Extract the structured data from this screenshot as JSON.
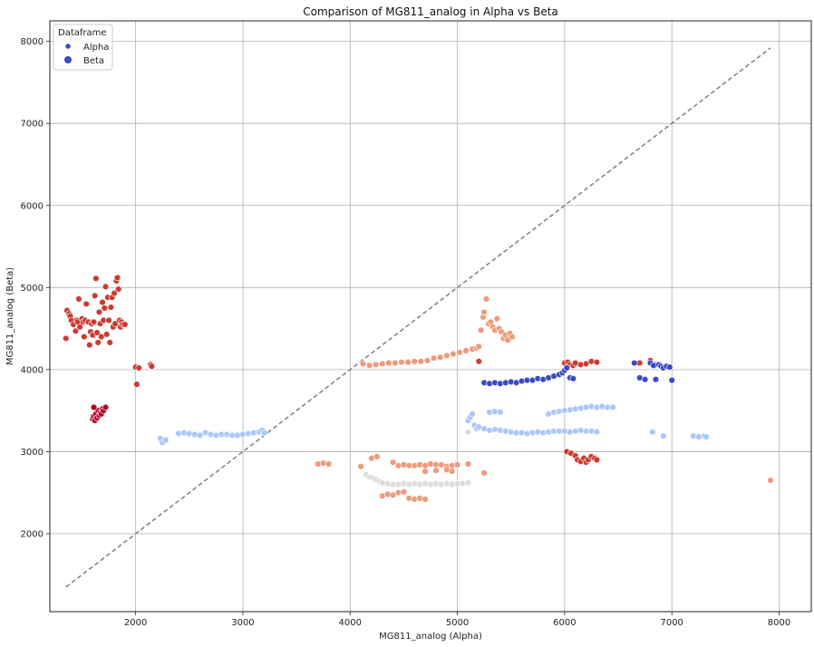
{
  "chart_data": {
    "type": "scatter",
    "title": "Comparison of MG811_analog in Alpha vs Beta",
    "xlabel": "MG811_analog (Alpha)",
    "ylabel": "MG811_analog (Beta)",
    "xlim": [
      1200,
      8300
    ],
    "ylim": [
      1050,
      8250
    ],
    "xticks": [
      2000,
      3000,
      4000,
      5000,
      6000,
      7000,
      8000
    ],
    "yticks": [
      2000,
      3000,
      4000,
      5000,
      6000,
      7000,
      8000
    ],
    "grid": true,
    "legend": {
      "title": "Dataframe",
      "placement": "top-left",
      "entries": [
        {
          "label": "Alpha",
          "color": "#3b4cc0"
        },
        {
          "label": "Beta",
          "color": "#3b4cc0"
        }
      ]
    },
    "reference_line": {
      "style": "dashed",
      "color": "#808080",
      "from": [
        1350,
        1350
      ],
      "to": [
        7920,
        7920
      ]
    },
    "series": [
      {
        "color": "#cc3b33",
        "points": [
          [
            1350,
            4380
          ],
          [
            1360,
            4720
          ],
          [
            1380,
            4680
          ],
          [
            1390,
            4650
          ],
          [
            1400,
            4600
          ],
          [
            1420,
            4550
          ],
          [
            1440,
            4470
          ],
          [
            1450,
            4600
          ],
          [
            1460,
            4580
          ],
          [
            1470,
            4860
          ],
          [
            1480,
            4520
          ],
          [
            1500,
            4620
          ],
          [
            1510,
            4580
          ],
          [
            1520,
            4400
          ],
          [
            1530,
            4600
          ],
          [
            1540,
            4800
          ],
          [
            1560,
            4580
          ],
          [
            1570,
            4300
          ],
          [
            1580,
            4460
          ],
          [
            1590,
            4560
          ],
          [
            1600,
            4420
          ],
          [
            1610,
            4580
          ],
          [
            1620,
            4900
          ],
          [
            1630,
            5110
          ],
          [
            1640,
            4450
          ],
          [
            1650,
            4330
          ],
          [
            1660,
            4700
          ],
          [
            1670,
            4560
          ],
          [
            1680,
            4400
          ],
          [
            1690,
            4820
          ],
          [
            1700,
            4600
          ],
          [
            1710,
            4750
          ],
          [
            1720,
            5010
          ],
          [
            1730,
            4430
          ],
          [
            1740,
            4880
          ],
          [
            1750,
            4600
          ],
          [
            1760,
            4330
          ],
          [
            1770,
            4760
          ],
          [
            1780,
            4880
          ],
          [
            1790,
            4520
          ],
          [
            1800,
            4930
          ],
          [
            1810,
            4560
          ],
          [
            1820,
            5080
          ],
          [
            1830,
            5120
          ],
          [
            1840,
            4980
          ],
          [
            1850,
            4600
          ],
          [
            1860,
            4520
          ],
          [
            1870,
            4580
          ],
          [
            1880,
            4550
          ],
          [
            1900,
            4550
          ],
          [
            2000,
            4030
          ],
          [
            2010,
            3820
          ],
          [
            2030,
            4020
          ],
          [
            2140,
            4060
          ],
          [
            2150,
            4040
          ],
          [
            6000,
            4080
          ],
          [
            6030,
            4090
          ],
          [
            6050,
            4060
          ],
          [
            6080,
            4050
          ],
          [
            6100,
            4080
          ],
          [
            6150,
            4060
          ],
          [
            6200,
            4070
          ],
          [
            6250,
            4100
          ],
          [
            6300,
            4090
          ],
          [
            6700,
            4080
          ],
          [
            6800,
            4110
          ],
          [
            6850,
            4060
          ],
          [
            5200,
            4100
          ],
          [
            6020,
            3000
          ],
          [
            6060,
            2980
          ],
          [
            6100,
            2950
          ],
          [
            6120,
            2900
          ],
          [
            6150,
            2880
          ],
          [
            6180,
            2920
          ],
          [
            6200,
            2870
          ],
          [
            6220,
            2900
          ],
          [
            6250,
            2940
          ],
          [
            6280,
            2920
          ],
          [
            6300,
            2900
          ]
        ]
      },
      {
        "color": "#b40426",
        "points": [
          [
            1600,
            3400
          ],
          [
            1610,
            3430
          ],
          [
            1620,
            3380
          ],
          [
            1630,
            3460
          ],
          [
            1640,
            3410
          ],
          [
            1650,
            3500
          ],
          [
            1660,
            3440
          ],
          [
            1670,
            3480
          ],
          [
            1680,
            3460
          ],
          [
            1690,
            3520
          ],
          [
            1700,
            3500
          ],
          [
            1720,
            3540
          ],
          [
            1610,
            3540
          ]
        ]
      },
      {
        "color": "#f0997b",
        "points": [
          [
            4120,
            4070
          ],
          [
            4180,
            4050
          ],
          [
            4240,
            4060
          ],
          [
            4300,
            4070
          ],
          [
            4360,
            4080
          ],
          [
            4420,
            4080
          ],
          [
            4480,
            4090
          ],
          [
            4540,
            4090
          ],
          [
            4600,
            4100
          ],
          [
            4660,
            4100
          ],
          [
            4720,
            4110
          ],
          [
            4780,
            4140
          ],
          [
            4840,
            4150
          ],
          [
            4900,
            4170
          ],
          [
            4960,
            4190
          ],
          [
            5020,
            4210
          ],
          [
            5080,
            4230
          ],
          [
            5140,
            4250
          ],
          [
            5180,
            4260
          ],
          [
            5200,
            4280
          ],
          [
            5220,
            4480
          ],
          [
            5240,
            4640
          ],
          [
            5250,
            4700
          ],
          [
            5270,
            4860
          ],
          [
            5290,
            4560
          ],
          [
            5310,
            4580
          ],
          [
            5330,
            4520
          ],
          [
            5350,
            4480
          ],
          [
            5370,
            4620
          ],
          [
            5390,
            4500
          ],
          [
            5410,
            4460
          ],
          [
            5430,
            4380
          ],
          [
            5450,
            4420
          ],
          [
            5470,
            4360
          ],
          [
            5490,
            4440
          ],
          [
            5510,
            4400
          ],
          [
            3700,
            2850
          ],
          [
            3750,
            2860
          ],
          [
            3800,
            2850
          ],
          [
            4100,
            2820
          ],
          [
            4200,
            2920
          ],
          [
            4250,
            2940
          ],
          [
            4400,
            2870
          ],
          [
            4450,
            2830
          ],
          [
            4500,
            2840
          ],
          [
            4550,
            2830
          ],
          [
            4600,
            2830
          ],
          [
            4650,
            2840
          ],
          [
            4700,
            2830
          ],
          [
            4750,
            2850
          ],
          [
            4800,
            2840
          ],
          [
            4850,
            2840
          ],
          [
            4900,
            2820
          ],
          [
            4950,
            2830
          ],
          [
            5000,
            2840
          ],
          [
            5100,
            2850
          ],
          [
            5250,
            2740
          ],
          [
            4700,
            2760
          ],
          [
            4800,
            2770
          ],
          [
            4900,
            2780
          ],
          [
            4950,
            2760
          ],
          [
            4300,
            2460
          ],
          [
            4350,
            2480
          ],
          [
            4400,
            2470
          ],
          [
            4450,
            2500
          ],
          [
            4500,
            2510
          ],
          [
            4550,
            2430
          ],
          [
            4600,
            2420
          ],
          [
            4650,
            2430
          ],
          [
            4700,
            2420
          ],
          [
            7920,
            2650
          ]
        ]
      },
      {
        "color": "#dddcdc",
        "points": [
          [
            4150,
            2720
          ],
          [
            4180,
            2690
          ],
          [
            4210,
            2680
          ],
          [
            4240,
            2660
          ],
          [
            4270,
            2640
          ],
          [
            4300,
            2620
          ],
          [
            4350,
            2610
          ],
          [
            4400,
            2600
          ],
          [
            4450,
            2600
          ],
          [
            4500,
            2610
          ],
          [
            4550,
            2600
          ],
          [
            4600,
            2610
          ],
          [
            4650,
            2600
          ],
          [
            4700,
            2610
          ],
          [
            4750,
            2600
          ],
          [
            4800,
            2610
          ],
          [
            4850,
            2600
          ],
          [
            4900,
            2610
          ],
          [
            4950,
            2600
          ],
          [
            5000,
            2610
          ],
          [
            5050,
            2610
          ],
          [
            5100,
            2620
          ],
          [
            5100,
            3240
          ]
        ]
      },
      {
        "color": "#aac7fd",
        "points": [
          [
            2230,
            3160
          ],
          [
            2250,
            3110
          ],
          [
            2280,
            3140
          ],
          [
            2400,
            3220
          ],
          [
            2450,
            3230
          ],
          [
            2500,
            3220
          ],
          [
            2550,
            3210
          ],
          [
            2600,
            3200
          ],
          [
            2650,
            3230
          ],
          [
            2700,
            3210
          ],
          [
            2750,
            3200
          ],
          [
            2800,
            3210
          ],
          [
            2850,
            3210
          ],
          [
            2900,
            3200
          ],
          [
            2950,
            3200
          ],
          [
            3000,
            3210
          ],
          [
            3050,
            3220
          ],
          [
            3100,
            3230
          ],
          [
            3150,
            3240
          ],
          [
            3180,
            3260
          ],
          [
            3200,
            3230
          ],
          [
            5100,
            3380
          ],
          [
            5120,
            3420
          ],
          [
            5140,
            3460
          ],
          [
            5160,
            3320
          ],
          [
            5180,
            3280
          ],
          [
            5200,
            3300
          ],
          [
            5250,
            3280
          ],
          [
            5300,
            3260
          ],
          [
            5350,
            3270
          ],
          [
            5400,
            3260
          ],
          [
            5450,
            3250
          ],
          [
            5500,
            3240
          ],
          [
            5550,
            3230
          ],
          [
            5600,
            3230
          ],
          [
            5650,
            3220
          ],
          [
            5700,
            3230
          ],
          [
            5750,
            3240
          ],
          [
            5800,
            3230
          ],
          [
            5850,
            3240
          ],
          [
            5900,
            3250
          ],
          [
            5950,
            3250
          ],
          [
            6000,
            3250
          ],
          [
            6050,
            3240
          ],
          [
            6100,
            3250
          ],
          [
            6150,
            3260
          ],
          [
            6200,
            3250
          ],
          [
            6250,
            3250
          ],
          [
            6300,
            3240
          ],
          [
            5300,
            3480
          ],
          [
            5350,
            3490
          ],
          [
            5400,
            3480
          ],
          [
            5850,
            3460
          ],
          [
            5900,
            3480
          ],
          [
            5950,
            3490
          ],
          [
            6000,
            3500
          ],
          [
            6050,
            3510
          ],
          [
            6100,
            3520
          ],
          [
            6150,
            3530
          ],
          [
            6200,
            3540
          ],
          [
            6250,
            3550
          ],
          [
            6300,
            3540
          ],
          [
            6350,
            3550
          ],
          [
            6400,
            3540
          ],
          [
            6450,
            3540
          ],
          [
            6820,
            3240
          ],
          [
            6920,
            3190
          ],
          [
            7200,
            3190
          ],
          [
            7250,
            3180
          ],
          [
            7300,
            3190
          ],
          [
            7320,
            3180
          ]
        ]
      },
      {
        "color": "#3b4cc0",
        "points": [
          [
            5250,
            3840
          ],
          [
            5300,
            3830
          ],
          [
            5350,
            3840
          ],
          [
            5400,
            3830
          ],
          [
            5450,
            3840
          ],
          [
            5500,
            3850
          ],
          [
            5550,
            3840
          ],
          [
            5600,
            3860
          ],
          [
            5650,
            3870
          ],
          [
            5700,
            3870
          ],
          [
            5750,
            3890
          ],
          [
            5800,
            3880
          ],
          [
            5850,
            3900
          ],
          [
            5900,
            3920
          ],
          [
            5950,
            3940
          ],
          [
            5980,
            3960
          ],
          [
            6000,
            3990
          ],
          [
            6020,
            4020
          ],
          [
            6050,
            3900
          ],
          [
            6080,
            3890
          ],
          [
            6650,
            4080
          ],
          [
            6700,
            3900
          ],
          [
            6750,
            3880
          ],
          [
            6800,
            4080
          ],
          [
            6830,
            4050
          ],
          [
            6850,
            3880
          ],
          [
            6880,
            4060
          ],
          [
            6900,
            4040
          ],
          [
            6920,
            4020
          ],
          [
            6950,
            4040
          ],
          [
            6980,
            4030
          ],
          [
            7000,
            3870
          ]
        ]
      }
    ]
  }
}
